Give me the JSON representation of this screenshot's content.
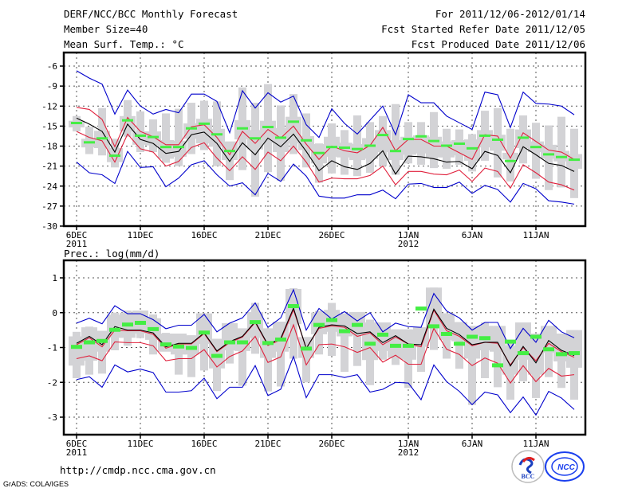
{
  "header": {
    "title": "DERF/NCC/BCC Monthly Forecast",
    "member_size": "Member Size=40",
    "variable_top": "Mean Surf. Temp.: °C",
    "period": "For 2011/12/06-2012/01/14",
    "started_refer": "Fcst Started Refer Date 2011/12/05",
    "produced": "Fcst Produced Date 2011/12/06"
  },
  "footer": {
    "url": "http://cmdp.ncc.cma.gov.cn",
    "grads_credit": "GrADS: COLA/IGES",
    "logos": [
      "BCC",
      "NCC"
    ]
  },
  "colors": {
    "ensemble_mean": "#000000",
    "std_band": "#e0203c",
    "extremes": "#0000cc",
    "observed_marker": "#44ee44",
    "box": "#d3d3d6",
    "grid": "#555555"
  },
  "chart_data": [
    {
      "type": "line",
      "title": "Mean Surf. Temp.: °C",
      "xlabel": "",
      "ylabel": "",
      "ylim": [
        -30,
        -4
      ],
      "yticks": [
        -30,
        -27,
        -24,
        -21,
        -18,
        -15,
        -12,
        -9,
        -6
      ],
      "ytick_labels": [
        "-30",
        "-27",
        "-24",
        "-21",
        "-18",
        "-15",
        "-12",
        "-9",
        "-6"
      ],
      "xtick_labels": [
        {
          "day": 0,
          "label": "6DEC",
          "sub": "2011"
        },
        {
          "day": 5,
          "label": "11DEC",
          "sub": ""
        },
        {
          "day": 10,
          "label": "16DEC",
          "sub": ""
        },
        {
          "day": 15,
          "label": "21DEC",
          "sub": ""
        },
        {
          "day": 20,
          "label": "26DEC",
          "sub": ""
        },
        {
          "day": 26,
          "label": "1JAN",
          "sub": "2012"
        },
        {
          "day": 31,
          "label": "6JAN",
          "sub": ""
        },
        {
          "day": 36,
          "label": "11JAN",
          "sub": ""
        }
      ],
      "grid": true,
      "days": 40,
      "series": [
        {
          "name": "max",
          "values": [
            -6.7,
            -7.8,
            -8.7,
            -13.2,
            -9.6,
            -12.0,
            -13.2,
            -12.5,
            -13.0,
            -10.2,
            -10.2,
            -11.3,
            -16.0,
            -9.7,
            -12.3,
            -10.0,
            -11.4,
            -10.5,
            -14.8,
            -16.7,
            -12.4,
            -14.6,
            -16.2,
            -14.1,
            -12.0,
            -16.3,
            -10.3,
            -11.5,
            -11.5,
            -13.5,
            -14.5,
            -15.5,
            -9.9,
            -10.3,
            -15.2,
            -9.9,
            -11.6,
            -11.7,
            -12.0,
            -13.3
          ]
        },
        {
          "name": "upper",
          "values": [
            -12.2,
            -12.5,
            -14.0,
            -18.1,
            -13.7,
            -15.8,
            -16.6,
            -17.8,
            -17.8,
            -15.1,
            -14.8,
            -16.7,
            -19.3,
            -15.8,
            -17.6,
            -15.5,
            -16.8,
            -15.0,
            -17.7,
            -20.0,
            -18.0,
            -18.7,
            -19.0,
            -17.9,
            -15.2,
            -18.7,
            -17.0,
            -17.0,
            -18.0,
            -18.0,
            -19.0,
            -20.0,
            -16.3,
            -16.5,
            -19.8,
            -16.0,
            -17.3,
            -18.6,
            -18.9,
            -20.0
          ]
        },
        {
          "name": "mean",
          "values": [
            -13.8,
            -14.7,
            -15.8,
            -18.9,
            -14.7,
            -17.0,
            -17.6,
            -19.1,
            -18.8,
            -16.3,
            -15.9,
            -17.6,
            -20.3,
            -17.5,
            -19.3,
            -16.8,
            -18.1,
            -16.2,
            -18.8,
            -21.7,
            -20.2,
            -21.1,
            -21.5,
            -20.6,
            -18.7,
            -22.2,
            -19.5,
            -19.6,
            -19.9,
            -20.4,
            -20.3,
            -21.4,
            -18.8,
            -19.4,
            -22.0,
            -18.1,
            -19.3,
            -20.6,
            -20.9,
            -21.8
          ]
        },
        {
          "name": "lower",
          "values": [
            -15.8,
            -16.7,
            -17.2,
            -20.4,
            -16.2,
            -18.4,
            -18.9,
            -21.0,
            -20.3,
            -18.2,
            -17.5,
            -19.8,
            -21.7,
            -19.6,
            -21.5,
            -18.9,
            -20.2,
            -18.0,
            -20.4,
            -23.4,
            -22.8,
            -22.9,
            -22.9,
            -22.4,
            -21.0,
            -23.8,
            -21.8,
            -21.8,
            -22.2,
            -22.3,
            -21.6,
            -23.3,
            -21.3,
            -21.8,
            -24.3,
            -20.8,
            -22.0,
            -23.4,
            -23.8,
            -24.6
          ]
        },
        {
          "name": "min",
          "values": [
            -20.4,
            -22.0,
            -22.3,
            -23.6,
            -18.8,
            -21.2,
            -21.1,
            -24.1,
            -22.8,
            -20.8,
            -20.2,
            -22.3,
            -24.0,
            -23.5,
            -25.3,
            -22.1,
            -23.3,
            -20.7,
            -22.5,
            -25.5,
            -25.8,
            -25.8,
            -25.3,
            -25.3,
            -24.6,
            -25.9,
            -23.7,
            -23.6,
            -24.2,
            -24.2,
            -23.4,
            -25.1,
            -23.9,
            -24.5,
            -26.4,
            -23.6,
            -24.4,
            -26.2,
            -26.4,
            -26.7
          ]
        },
        {
          "name": "observed",
          "values": [
            -14.6,
            -17.5,
            -16.9,
            -19.5,
            -14.2,
            -16.5,
            -16.7,
            -18.2,
            -18.2,
            -15.4,
            -14.7,
            -16.3,
            -18.8,
            -15.4,
            -16.9,
            -15.2,
            -16.8,
            -14.4,
            -17.2,
            -19.1,
            -18.2,
            -18.3,
            -18.5,
            -18.0,
            -16.4,
            -18.8,
            -17.0,
            -16.6,
            -17.3,
            -18.0,
            -17.7,
            -18.4,
            -16.5,
            -17.1,
            -20.3,
            -16.8,
            -18.2,
            -19.3,
            -19.7,
            -20.1
          ]
        }
      ],
      "boxes": {
        "whisker_low": [
          -15.8,
          -19.2,
          -19.4,
          -21.2,
          -16.6,
          -18.9,
          -18.9,
          -20.5,
          -21.0,
          -19.2,
          -18.6,
          -21.0,
          -23.1,
          -21.6,
          -25.6,
          -21.9,
          -23.2,
          -19.2,
          -21.2,
          -23.5,
          -22.1,
          -22.3,
          -22.5,
          -22.0,
          -21.0,
          -22.3,
          -20.6,
          -20.8,
          -21.3,
          -21.4,
          -20.8,
          -21.8,
          -20.2,
          -22.7,
          -23.3,
          -20.6,
          -22.9,
          -24.6,
          -24.2,
          -25.8
        ],
        "box_low": [
          -15.2,
          -18.2,
          -18.3,
          -20.4,
          -15.8,
          -17.8,
          -17.9,
          -19.9,
          -19.6,
          -16.9,
          -17.6,
          -18.1,
          -20.1,
          -17.0,
          -18.5,
          -17.5,
          -18.9,
          -17.6,
          -18.6,
          -20.6,
          -19.6,
          -19.7,
          -20.1,
          -19.9,
          -18.9,
          -20.1,
          -19.3,
          -19.1,
          -19.7,
          -19.7,
          -19.4,
          -20.2,
          -18.2,
          -18.7,
          -20.0,
          -18.3,
          -18.9,
          -19.9,
          -20.3,
          -21.4
        ],
        "box_high": [
          -14.2,
          -16.9,
          -15.7,
          -18.3,
          -13.5,
          -15.8,
          -15.8,
          -17.1,
          -17.2,
          -14.6,
          -13.9,
          -15.4,
          -17.3,
          -14.1,
          -15.6,
          -14.2,
          -15.3,
          -13.6,
          -16.5,
          -17.7,
          -16.6,
          -17.5,
          -17.7,
          -16.8,
          -15.6,
          -17.1,
          -16.6,
          -16.4,
          -16.6,
          -17.3,
          -17.1,
          -17.0,
          -15.6,
          -16.3,
          -19.0,
          -15.5,
          -17.3,
          -17.8,
          -18.7,
          -19.2
        ],
        "whisker_high": [
          -13.5,
          -15.1,
          -12.3,
          -16.9,
          -11.1,
          -12.8,
          -14.0,
          -13.1,
          -12.4,
          -11.5,
          -11.2,
          -11.3,
          -17.7,
          -9.2,
          -11.5,
          -8.7,
          -11.9,
          -10.2,
          -13.1,
          -17.6,
          -14.6,
          -15.6,
          -13.4,
          -14.4,
          -13.5,
          -11.7,
          -14.4,
          -14.4,
          -12.9,
          -15.4,
          -15.5,
          -16.2,
          -12.7,
          -12.3,
          -15.4,
          -13.4,
          -14.5,
          -14.9,
          -13.6,
          -15.4
        ]
      }
    },
    {
      "type": "line",
      "title": "Prec.: log(mm/d)",
      "xlabel": "",
      "ylabel": "",
      "ylim": [
        -3.5,
        1.5
      ],
      "yticks": [
        -3,
        -2,
        -1,
        0,
        1
      ],
      "ytick_labels": [
        "-3",
        "-2",
        "-1",
        "0",
        "1"
      ],
      "xtick_labels": [
        {
          "day": 0,
          "label": "6DEC",
          "sub": "2011"
        },
        {
          "day": 5,
          "label": "11DEC",
          "sub": ""
        },
        {
          "day": 10,
          "label": "16DEC",
          "sub": ""
        },
        {
          "day": 15,
          "label": "21DEC",
          "sub": ""
        },
        {
          "day": 20,
          "label": "26DEC",
          "sub": ""
        },
        {
          "day": 26,
          "label": "1JAN",
          "sub": "2012"
        },
        {
          "day": 31,
          "label": "6JAN",
          "sub": ""
        },
        {
          "day": 36,
          "label": "11JAN",
          "sub": ""
        }
      ],
      "grid": true,
      "days": 40,
      "series": [
        {
          "name": "max",
          "values": [
            -0.3,
            -0.16,
            -0.32,
            0.2,
            -0.03,
            -0.03,
            -0.2,
            -0.46,
            -0.36,
            -0.36,
            -0.05,
            -0.55,
            -0.3,
            -0.15,
            0.28,
            -0.42,
            -0.15,
            0.66,
            -0.5,
            0.12,
            -0.18,
            0.03,
            -0.24,
            0.0,
            -0.55,
            -0.3,
            -0.4,
            -0.42,
            0.55,
            0.05,
            -0.15,
            -0.5,
            -0.28,
            -0.28,
            -1.03,
            -0.45,
            -0.85,
            -0.22,
            -0.55,
            -0.72
          ]
        },
        {
          "name": "upper",
          "values": [
            -0.92,
            -0.72,
            -0.98,
            -0.5,
            -0.52,
            -0.52,
            -0.62,
            -1.02,
            -0.9,
            -0.9,
            -0.6,
            -1.12,
            -0.86,
            -0.7,
            -0.28,
            -0.94,
            -0.78,
            0.08,
            -1.02,
            -0.45,
            -0.38,
            -0.42,
            -0.68,
            -0.58,
            -0.92,
            -0.7,
            -0.9,
            -0.98,
            0.07,
            -0.52,
            -0.68,
            -0.95,
            -0.85,
            -0.88,
            -1.5,
            -1.0,
            -1.38,
            -0.88,
            -1.12,
            -1.28
          ]
        },
        {
          "name": "mean",
          "values": [
            -0.88,
            -0.68,
            -0.92,
            -0.4,
            -0.5,
            -0.5,
            -0.58,
            -0.98,
            -0.88,
            -0.88,
            -0.58,
            -1.1,
            -0.83,
            -0.68,
            -0.26,
            -0.92,
            -0.74,
            0.13,
            -1.03,
            -0.42,
            -0.35,
            -0.38,
            -0.6,
            -0.55,
            -0.86,
            -0.66,
            -0.9,
            -0.92,
            0.1,
            -0.45,
            -0.63,
            -0.92,
            -0.85,
            -0.85,
            -1.53,
            -0.97,
            -1.44,
            -0.8,
            -1.08,
            -1.23
          ]
        },
        {
          "name": "lower",
          "values": [
            -1.32,
            -1.24,
            -1.38,
            -0.84,
            -0.86,
            -0.86,
            -0.95,
            -1.38,
            -1.32,
            -1.32,
            -1.06,
            -1.56,
            -1.26,
            -1.1,
            -0.68,
            -1.43,
            -1.27,
            -0.35,
            -1.5,
            -0.92,
            -0.9,
            -0.98,
            -1.14,
            -1.0,
            -1.42,
            -1.22,
            -1.48,
            -1.48,
            -0.45,
            -1.05,
            -1.2,
            -1.52,
            -1.3,
            -1.45,
            -2.02,
            -1.52,
            -1.98,
            -1.6,
            -1.82,
            -1.78
          ]
        },
        {
          "name": "min",
          "values": [
            -1.92,
            -1.84,
            -2.14,
            -1.5,
            -1.7,
            -1.62,
            -1.72,
            -2.28,
            -2.28,
            -2.24,
            -1.88,
            -2.47,
            -2.14,
            -2.14,
            -1.52,
            -2.38,
            -2.2,
            -1.26,
            -2.44,
            -1.78,
            -1.78,
            -1.86,
            -1.78,
            -2.28,
            -2.2,
            -2.0,
            -2.02,
            -2.5,
            -1.5,
            -1.98,
            -2.26,
            -2.64,
            -2.28,
            -2.36,
            -2.87,
            -2.42,
            -2.94,
            -2.26,
            -2.45,
            -2.78
          ]
        },
        {
          "name": "observed",
          "values": [
            -0.97,
            -0.84,
            -0.8,
            -0.48,
            -0.33,
            -0.28,
            -0.46,
            -0.9,
            -0.96,
            -1.0,
            -0.56,
            -1.23,
            -0.84,
            -0.84,
            -0.26,
            -0.86,
            -0.76,
            0.2,
            -1.02,
            -0.34,
            -0.2,
            -0.52,
            -0.34,
            -0.88,
            -0.62,
            -0.94,
            -0.94,
            0.13,
            -0.38,
            -0.6,
            -0.88,
            -0.68,
            -0.72,
            -1.5,
            -0.82,
            -1.15,
            -0.68,
            -1.04,
            -1.18,
            -1.15
          ]
        }
      ],
      "boxes": {
        "whisker_low": [
          -1.88,
          -1.78,
          -1.75,
          -1.08,
          -0.95,
          -0.73,
          -1.2,
          -1.1,
          -1.78,
          -1.85,
          -1.66,
          -2.25,
          -1.46,
          -2.1,
          -1.18,
          -2.26,
          -2.12,
          -1.32,
          -2.0,
          -1.2,
          -1.24,
          -1.7,
          -1.53,
          -2.08,
          -1.35,
          -1.5,
          -2.16,
          -1.7,
          -1.07,
          -1.32,
          -1.61,
          -2.65,
          -1.88,
          -2.14,
          -2.5,
          -1.97,
          -2.45,
          -1.85,
          -2.16,
          -2.5
        ],
        "box_low": [
          -1.52,
          -1.38,
          -1.12,
          -0.72,
          -0.72,
          -0.6,
          -0.78,
          -1.12,
          -1.2,
          -1.2,
          -0.9,
          -1.6,
          -1.08,
          -1.1,
          -0.72,
          -1.3,
          -1.12,
          -0.33,
          -1.3,
          -0.62,
          -0.55,
          -0.68,
          -0.65,
          -1.36,
          -1.1,
          -1.3,
          -1.35,
          -0.98,
          -0.42,
          -0.78,
          -0.82,
          -1.32,
          -1.08,
          -1.12,
          -1.78,
          -1.35,
          -1.78,
          -1.15,
          -1.4,
          -1.58
        ],
        "box_high": [
          -0.68,
          -0.42,
          -0.52,
          -0.06,
          0.0,
          0.06,
          -0.16,
          -0.6,
          -0.6,
          -0.65,
          -0.02,
          -0.75,
          -0.3,
          -0.45,
          0.02,
          -0.45,
          -0.26,
          0.68,
          -0.7,
          0.0,
          0.08,
          -0.02,
          0.02,
          -0.28,
          -0.28,
          -0.48,
          -0.48,
          -0.42,
          0.72,
          -0.02,
          -0.27,
          -0.38,
          -0.38,
          -0.38,
          -0.95,
          -0.28,
          -0.6,
          -0.38,
          -0.6,
          -0.5
        ],
        "whisker_high": [
          -0.55,
          -0.4,
          -0.52,
          0.0,
          0.06,
          0.03,
          -0.05,
          -0.58,
          -0.6,
          -0.65,
          -0.02,
          -0.75,
          -0.3,
          -0.45,
          0.28,
          -0.45,
          -0.26,
          0.7,
          -0.7,
          0.05,
          0.28,
          -0.02,
          0.0,
          -0.2,
          -0.28,
          -0.48,
          -0.48,
          -0.42,
          0.72,
          -0.02,
          -0.27,
          -0.38,
          -0.28,
          -0.38,
          -0.88,
          -0.28,
          -0.6,
          -0.38,
          -0.6,
          -0.5
        ]
      }
    }
  ]
}
